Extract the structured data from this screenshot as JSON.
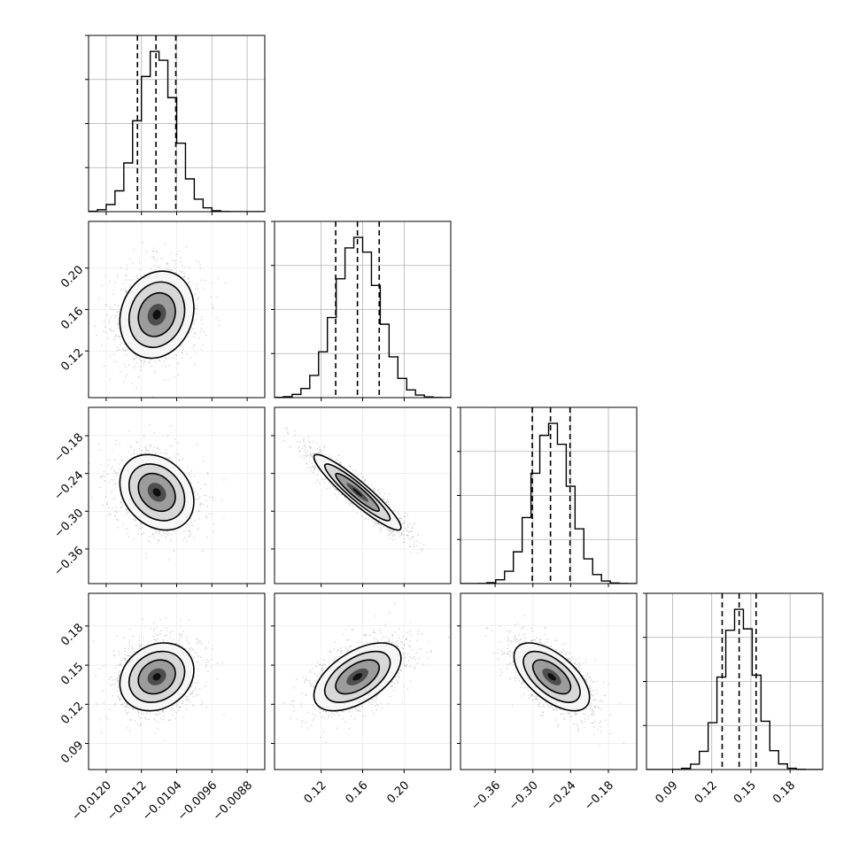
{
  "chart_data": {
    "type": "corner",
    "parameters": [
      {
        "index": 0,
        "range": [
          -0.0124,
          -0.0084
        ],
        "ticks": [
          -0.012,
          -0.0112,
          -0.0104,
          -0.0096,
          -0.0088
        ],
        "tick_labels": [
          "−0.0120",
          "−0.0112",
          "−0.0104",
          "−0.0096",
          "−0.0088"
        ],
        "mean": -0.01085,
        "sd": 0.00042,
        "quantiles": [
          -0.01129,
          -0.01087,
          -0.01042
        ]
      },
      {
        "index": 1,
        "range": [
          0.075,
          0.245
        ],
        "ticks": [
          0.12,
          0.16,
          0.2
        ],
        "tick_labels": [
          "0.12",
          "0.16",
          "0.20"
        ],
        "mean": 0.155,
        "sd": 0.021,
        "quantiles": [
          0.134,
          0.155,
          0.176
        ]
      },
      {
        "index": 2,
        "range": [
          -0.415,
          -0.135
        ],
        "ticks": [
          -0.36,
          -0.3,
          -0.24,
          -0.18
        ],
        "tick_labels": [
          "−0.36",
          "−0.30",
          "−0.24",
          "−0.18"
        ],
        "mean": -0.27,
        "sd": 0.03,
        "quantiles": [
          -0.301,
          -0.272,
          -0.241
        ]
      },
      {
        "index": 3,
        "range": [
          0.07,
          0.205
        ],
        "ticks": [
          0.09,
          0.12,
          0.15,
          0.18
        ],
        "tick_labels": [
          "0.09",
          "0.12",
          "0.15",
          "0.18"
        ],
        "mean": 0.141,
        "sd": 0.013,
        "quantiles": [
          0.128,
          0.141,
          0.154
        ]
      }
    ],
    "correlations": {
      "1-0": 0.15,
      "2-0": -0.25,
      "2-1": -0.93,
      "3-0": 0.2,
      "3-1": 0.55,
      "3-2": -0.6
    },
    "histogram_bins": 20,
    "grid": true,
    "colors": {
      "contour": "#000000",
      "scatter": "#9a9a9a",
      "quantile_line": "#000000",
      "grid": "#b0b0b0"
    }
  }
}
